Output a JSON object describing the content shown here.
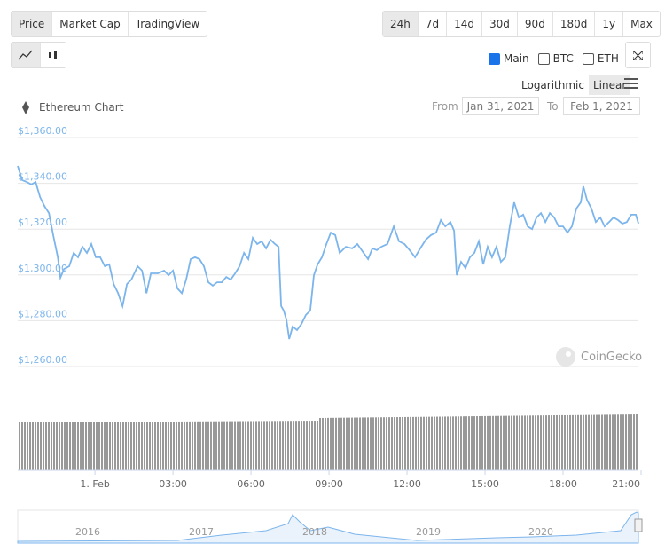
{
  "controls": {
    "tabs": [
      "Price",
      "Market Cap",
      "TradingView"
    ],
    "ranges": [
      "24h",
      "7d",
      "14d",
      "30d",
      "90d",
      "180d",
      "1y",
      "Max"
    ],
    "legend": [
      "Main",
      "BTC",
      "ETH"
    ],
    "scales": [
      "Logarithmic",
      "Linear"
    ],
    "from_label": "From",
    "from_date": "Jan 31, 2021",
    "to_label": "To",
    "to_date": "Feb 1, 2021",
    "watermark": "CoinGecko",
    "navigator_labels": [
      "2016",
      "2017",
      "2018",
      "2019",
      "2020"
    ]
  },
  "chart_data": {
    "type": "line",
    "title": "Ethereum Chart",
    "color": "#7cb5ec",
    "grid": true,
    "x": [
      -2.97,
      -2.8,
      -2.62,
      -2.45,
      -2.28,
      -2.11,
      -1.94,
      -1.77,
      -1.6,
      -1.43,
      -1.33,
      -1.19,
      -0.99,
      -0.82,
      -0.65,
      -0.48,
      -0.31,
      -0.14,
      0.03,
      0.2,
      0.38,
      0.55,
      0.72,
      0.89,
      1.06,
      1.23,
      1.4,
      1.64,
      1.81,
      1.98,
      2.15,
      2.42,
      2.66,
      2.83,
      3.0,
      3.17,
      3.34,
      3.51,
      3.68,
      3.85,
      4.02,
      4.19,
      4.36,
      4.53,
      4.7,
      4.88,
      5.05,
      5.22,
      5.39,
      5.56,
      5.73,
      5.9,
      6.07,
      6.24,
      6.41,
      6.58,
      6.75,
      6.92,
      7.06,
      7.16,
      7.26,
      7.36,
      7.47,
      7.6,
      7.77,
      7.94,
      8.11,
      8.28,
      8.42,
      8.56,
      8.73,
      8.9,
      9.07,
      9.24,
      9.41,
      9.65,
      9.89,
      10.09,
      10.33,
      10.5,
      10.67,
      10.84,
      11.01,
      11.25,
      11.49,
      11.69,
      11.9,
      12.1,
      12.31,
      12.51,
      12.72,
      12.92,
      13.12,
      13.3,
      13.47,
      13.67,
      13.81,
      13.91,
      14.08,
      14.25,
      14.42,
      14.59,
      14.76,
      14.93,
      15.1,
      15.27,
      15.44,
      15.61,
      15.78,
      15.95,
      16.12,
      16.3,
      16.47,
      16.64,
      16.81,
      16.98,
      17.15,
      17.32,
      17.49,
      17.66,
      17.83,
      18.0,
      18.17,
      18.34,
      18.51,
      18.68,
      18.78,
      18.92,
      19.09,
      19.26,
      19.43,
      19.6,
      19.77,
      19.94,
      20.11,
      20.28,
      20.45,
      20.62,
      20.8,
      20.9
    ],
    "values": [
      1347.6,
      1341.4,
      1340.6,
      1339.5,
      1340.6,
      1334,
      1330,
      1327,
      1317,
      1307.7,
      1298.8,
      1302.6,
      1303.8,
      1309.6,
      1307.7,
      1312.3,
      1309.6,
      1313.5,
      1307.7,
      1307.7,
      1303.8,
      1304.6,
      1296,
      1292,
      1286.4,
      1296,
      1298,
      1303.8,
      1301.9,
      1292,
      1300.7,
      1300.7,
      1301.9,
      1299.9,
      1301.9,
      1294.1,
      1292,
      1298,
      1306.9,
      1307.7,
      1306.9,
      1303.8,
      1296.8,
      1295.3,
      1296.8,
      1296.8,
      1299.1,
      1298,
      1300.7,
      1303.8,
      1309.6,
      1306.9,
      1316.2,
      1313.5,
      1314.7,
      1311.6,
      1315.4,
      1313.5,
      1312.3,
      1286.4,
      1284.4,
      1280.5,
      1272,
      1277.4,
      1275.9,
      1278.6,
      1282.5,
      1284.4,
      1299.9,
      1304.6,
      1307.7,
      1313.5,
      1318.5,
      1317.4,
      1309.6,
      1312.3,
      1311.6,
      1313.5,
      1309.6,
      1306.9,
      1311.6,
      1310.8,
      1312.3,
      1313.5,
      1321.2,
      1314.7,
      1313.5,
      1310.8,
      1307.7,
      1311.6,
      1315.4,
      1317.4,
      1318.5,
      1324,
      1321.2,
      1323.1,
      1319.3,
      1299.9,
      1305.7,
      1303,
      1307.7,
      1309.6,
      1314.7,
      1304.6,
      1312.3,
      1307.7,
      1312.3,
      1305.7,
      1307.7,
      1321.2,
      1331.7,
      1325.1,
      1326.3,
      1321.2,
      1320,
      1325.1,
      1327,
      1323.1,
      1327,
      1325.1,
      1321.2,
      1321.2,
      1318.5,
      1321.2,
      1329,
      1331.7,
      1338.7,
      1332.8,
      1329,
      1323.1,
      1325.1,
      1321.2,
      1323.1,
      1325.1,
      1324,
      1322.4,
      1323.1,
      1326.3,
      1326.3,
      1322.4
    ],
    "xlim": [
      -2.97,
      21
    ],
    "ylim": [
      1260,
      1360
    ],
    "xticks": [
      {
        "value": 0,
        "label": "1. Feb"
      },
      {
        "value": 3,
        "label": "03:00"
      },
      {
        "value": 6,
        "label": "06:00"
      },
      {
        "value": 9,
        "label": "09:00"
      },
      {
        "value": 12,
        "label": "12:00"
      },
      {
        "value": 15,
        "label": "15:00"
      },
      {
        "value": 18,
        "label": "18:00"
      },
      {
        "value": 21,
        "label": "21:00"
      }
    ],
    "yticks": [
      {
        "value": 1360,
        "label": "$1,360.00"
      },
      {
        "value": 1340,
        "label": "$1,340.00"
      },
      {
        "value": 1320,
        "label": "$1,320.00"
      },
      {
        "value": 1300,
        "label": "$1,300.00"
      },
      {
        "value": 1280,
        "label": "$1,280.00"
      },
      {
        "value": 1260,
        "label": "$1,260.00"
      }
    ]
  }
}
